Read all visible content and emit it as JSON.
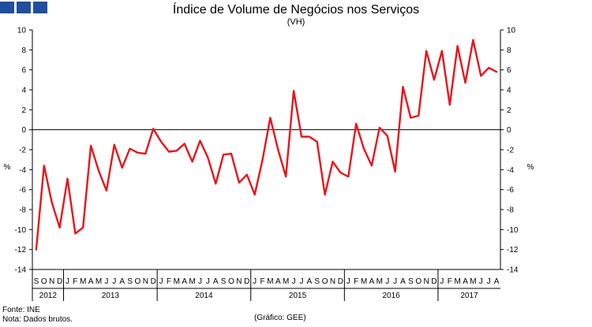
{
  "chart_data": {
    "type": "line",
    "title": "Índice de Volume de Negócios nos Serviços",
    "subtitle": "(VH)",
    "ylabel_left": "%",
    "ylabel_right": "%",
    "ylim": [
      -14,
      10
    ],
    "yticks": [
      -14,
      -12,
      -10,
      -8,
      -6,
      -4,
      -2,
      0,
      2,
      4,
      6,
      8,
      10
    ],
    "grid": false,
    "line_color": "#e8141c",
    "month_labels": [
      "S",
      "O",
      "N",
      "D",
      "J",
      "F",
      "M",
      "A",
      "M",
      "J",
      "J",
      "A",
      "S",
      "O",
      "N",
      "D",
      "J",
      "F",
      "M",
      "A",
      "M",
      "J",
      "J",
      "A",
      "S",
      "O",
      "N",
      "D",
      "J",
      "F",
      "M",
      "A",
      "M",
      "J",
      "J",
      "A",
      "S",
      "O",
      "N",
      "D",
      "J",
      "F",
      "M",
      "A",
      "M",
      "J",
      "J",
      "A",
      "S",
      "O",
      "N",
      "D",
      "J",
      "F",
      "M",
      "A",
      "M",
      "J",
      "J",
      "A"
    ],
    "years": [
      {
        "label": "2012",
        "start": 0,
        "count": 4
      },
      {
        "label": "2013",
        "start": 4,
        "count": 12
      },
      {
        "label": "2014",
        "start": 16,
        "count": 12
      },
      {
        "label": "2015",
        "start": 28,
        "count": 12
      },
      {
        "label": "2016",
        "start": 40,
        "count": 12
      },
      {
        "label": "2017",
        "start": 52,
        "count": 8
      }
    ],
    "series": [
      {
        "name": "VH",
        "values": [
          -12.0,
          -3.6,
          -7.3,
          -9.8,
          -4.9,
          -10.4,
          -9.8,
          -1.6,
          -4.1,
          -6.1,
          -1.5,
          -3.8,
          -1.9,
          -2.3,
          -2.4,
          0.1,
          -1.2,
          -2.2,
          -2.1,
          -1.4,
          -3.2,
          -1.1,
          -2.8,
          -5.4,
          -2.5,
          -2.4,
          -5.3,
          -4.5,
          -6.5,
          -3.0,
          1.2,
          -2.0,
          -4.7,
          3.9,
          -0.7,
          -0.7,
          -1.2,
          -6.5,
          -3.2,
          -4.3,
          -4.7,
          0.6,
          -1.9,
          -3.6,
          0.2,
          -0.6,
          -4.2,
          4.3,
          1.2,
          1.4,
          7.9,
          5.0,
          7.9,
          2.5,
          8.4,
          4.7,
          9.0,
          5.4,
          6.2,
          5.8
        ]
      }
    ]
  },
  "footer": {
    "source": "Fonte: INE",
    "note": "Nota: Dados brutos.",
    "credit": "(Gráfico: GEE)"
  }
}
